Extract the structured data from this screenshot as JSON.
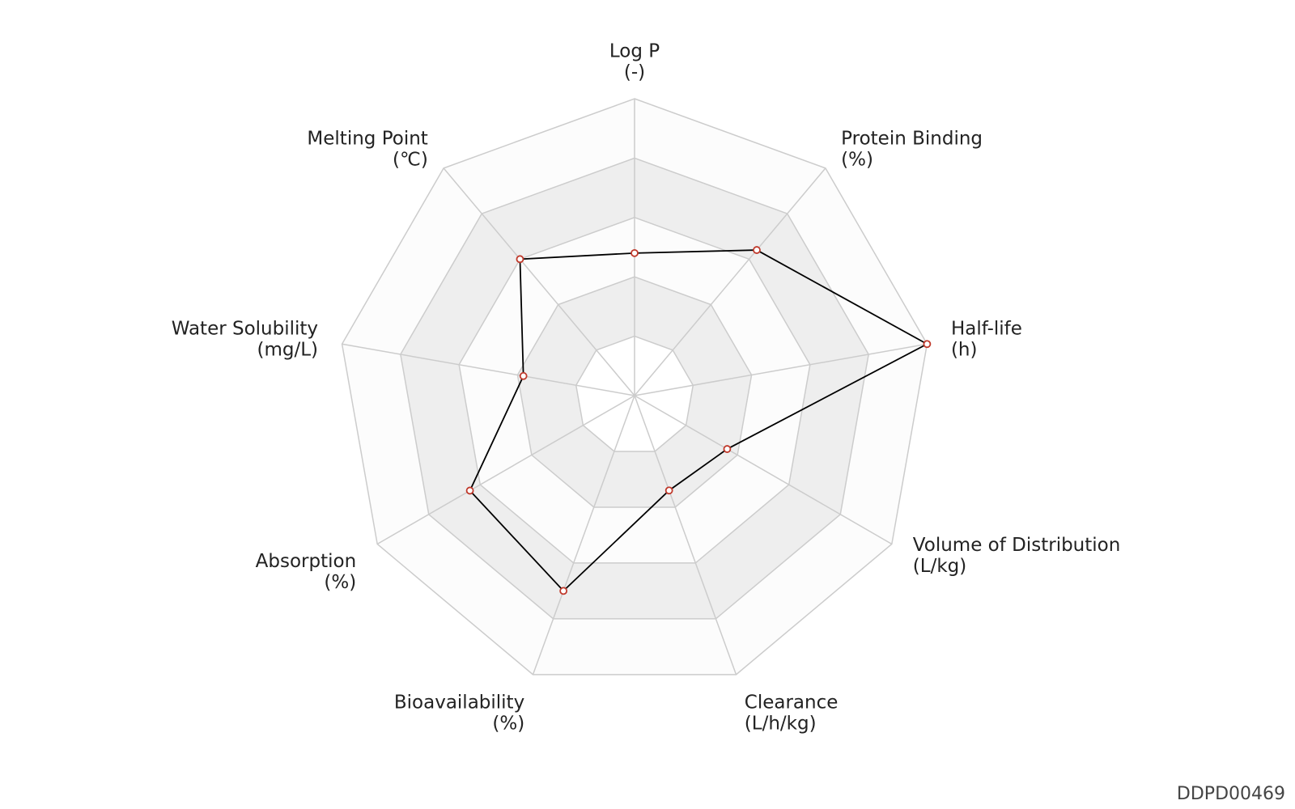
{
  "chart_data": {
    "type": "radar",
    "categories": [
      "Log P",
      "Protein Binding",
      "Half-life",
      "Volume of Distribution",
      "Clearance",
      "Bioavailability",
      "Absorption",
      "Water Solubility",
      "Melting Point"
    ],
    "units": [
      "(-)",
      "(%)",
      "(h)",
      "(L/kg)",
      "(L/h/kg)",
      "(%)",
      "(%)",
      "(mg/L)",
      "(℃)"
    ],
    "values": [
      2.4,
      3.2,
      5.0,
      1.8,
      1.7,
      3.5,
      3.2,
      1.9,
      3.0
    ],
    "color": "#000000",
    "marker_color": "#c0392b",
    "ylim": [
      0,
      5
    ],
    "yticks": [
      1,
      2,
      3,
      4,
      5
    ],
    "grid": true
  },
  "id": "DDPD00469"
}
